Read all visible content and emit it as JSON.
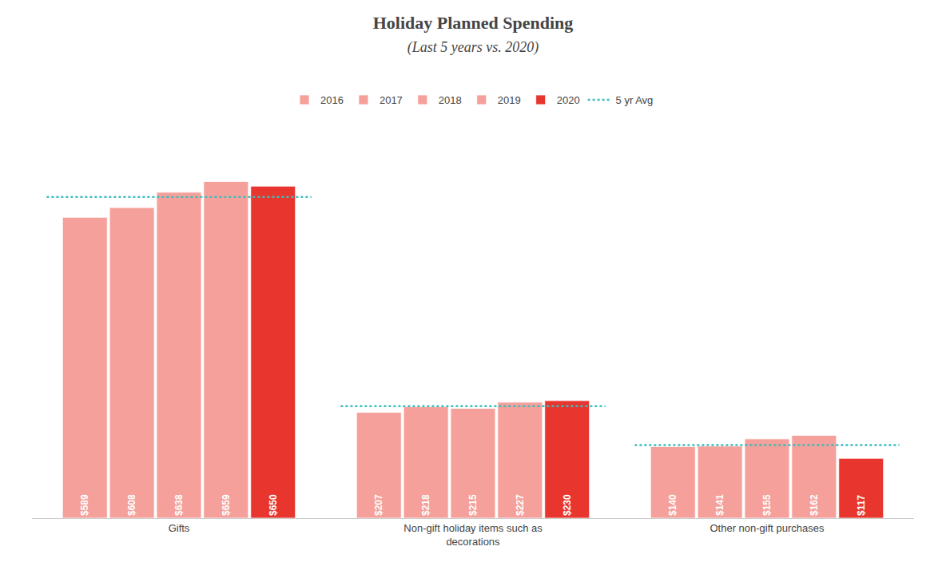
{
  "chart_data": {
    "type": "bar",
    "title": "Holiday Planned Spending",
    "subtitle": "(Last 5 years vs. 2020)",
    "categories": [
      "Gifts",
      "Non-gift holiday items such as\ndecorations",
      "Other non-gift purchases"
    ],
    "series": [
      {
        "name": "2016",
        "color": "#F5A09A",
        "values": [
          589,
          207,
          140
        ],
        "value_labels": [
          "$589",
          "$207",
          "$140"
        ]
      },
      {
        "name": "2017",
        "color": "#F5A09A",
        "values": [
          608,
          218,
          141
        ],
        "value_labels": [
          "$608",
          "$218",
          "$141"
        ]
      },
      {
        "name": "2018",
        "color": "#F5A09A",
        "values": [
          638,
          215,
          155
        ],
        "value_labels": [
          "$638",
          "$215",
          "$155"
        ]
      },
      {
        "name": "2019",
        "color": "#F5A09A",
        "values": [
          659,
          227,
          162
        ],
        "value_labels": [
          "$659",
          "$227",
          "$162"
        ]
      },
      {
        "name": "2020",
        "color": "#E8352E",
        "values": [
          650,
          230,
          117
        ],
        "value_labels": [
          "$650",
          "$230",
          "$117"
        ]
      },
      {
        "name": "5 yr Avg",
        "type": "line",
        "line_style": "dotted",
        "color": "#3DBDBD",
        "values": [
          628.8,
          219.4,
          143.0
        ]
      }
    ],
    "ylim": [
      0,
      780
    ],
    "grid": false,
    "legend": "top",
    "data_labels": true,
    "tick_labels": "x"
  }
}
